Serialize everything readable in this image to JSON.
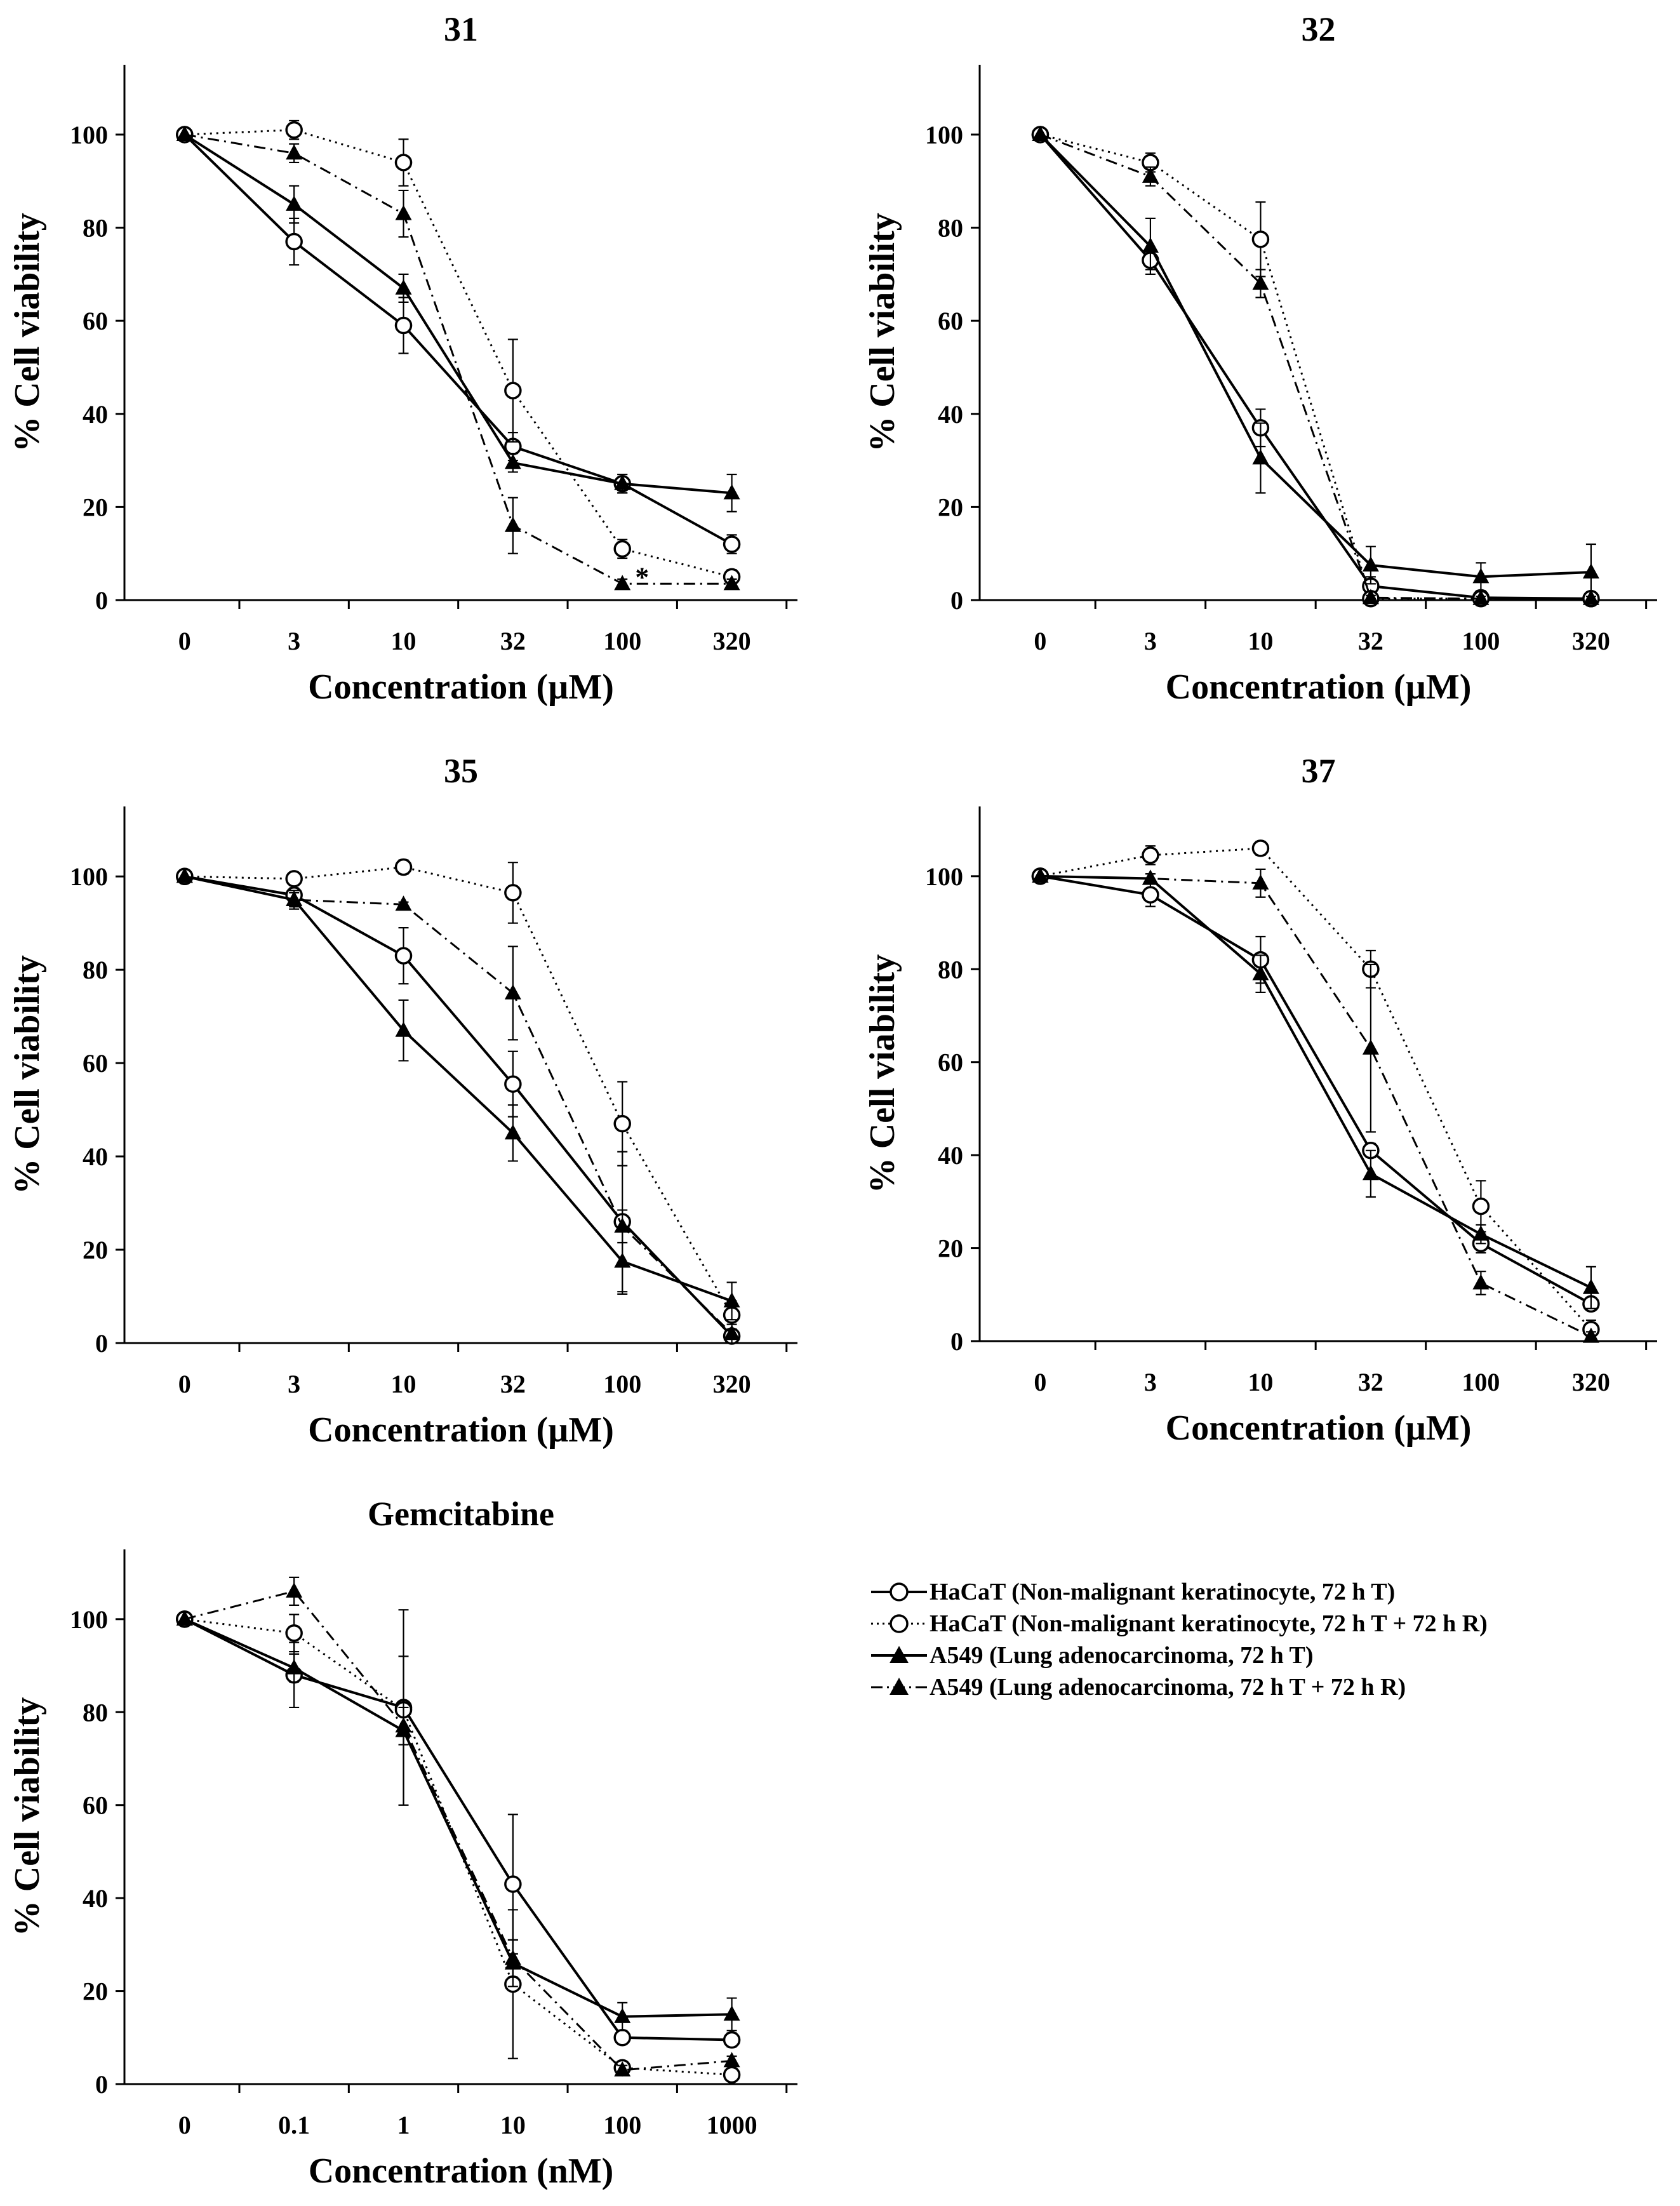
{
  "series_styles": [
    {
      "marker": "circle",
      "dash": "solid"
    },
    {
      "marker": "circle",
      "dash": "dotted"
    },
    {
      "marker": "triangle",
      "dash": "solid"
    },
    {
      "marker": "triangle",
      "dash": "dashdot"
    }
  ],
  "legend": [
    "HaCaT (Non-malignant keratinocyte, 72 h T)",
    "HaCaT (Non-malignant keratinocyte, 72 h T + 72 h R)",
    "A549 (Lung adenocarcinoma, 72 h T)",
    "A549 (Lung adenocarcinoma, 72 h T + 72 h R)"
  ],
  "chart_data": [
    {
      "type": "line",
      "title": "31",
      "xlabel": "Concentration (µM)",
      "ylabel": "% Cell viability",
      "categories": [
        "0",
        "3",
        "10",
        "32",
        "100",
        "320"
      ],
      "ylim": [
        0,
        115
      ],
      "yticks": [
        "0",
        "20",
        "40",
        "60",
        "80",
        "100"
      ],
      "annotations": [
        {
          "text": "*",
          "category": "100",
          "y": 3.5
        }
      ],
      "series": [
        {
          "values": [
            100,
            77,
            59,
            33,
            25,
            12
          ],
          "errors": [
            0,
            5,
            6,
            3,
            2,
            2
          ]
        },
        {
          "values": [
            100,
            101,
            94,
            45,
            11,
            5
          ],
          "errors": [
            0,
            2,
            5,
            11,
            2,
            1.5
          ]
        },
        {
          "values": [
            100,
            85,
            67,
            29.5,
            25,
            23
          ],
          "errors": [
            0,
            4,
            3,
            2,
            2,
            4
          ]
        },
        {
          "values": [
            100,
            96,
            83,
            16,
            3.5,
            3.5
          ],
          "errors": [
            0,
            2,
            5,
            6,
            1,
            1
          ]
        }
      ]
    },
    {
      "type": "line",
      "title": "32",
      "xlabel": "Concentration (µM)",
      "ylabel": "% Cell viability",
      "categories": [
        "0",
        "3",
        "10",
        "32",
        "100",
        "320"
      ],
      "ylim": [
        0,
        115
      ],
      "yticks": [
        "0",
        "20",
        "40",
        "60",
        "80",
        "100"
      ],
      "series": [
        {
          "values": [
            100,
            73,
            37,
            3,
            0.5,
            0.3
          ],
          "errors": [
            0,
            2,
            4,
            2,
            0.5,
            0.3
          ]
        },
        {
          "values": [
            100,
            94,
            77.5,
            0.3,
            0.3,
            0.3
          ],
          "errors": [
            0,
            2,
            8,
            0.5,
            0.5,
            0.5
          ]
        },
        {
          "values": [
            100,
            76,
            30.5,
            7.5,
            5,
            6
          ],
          "errors": [
            0,
            6,
            7.5,
            4,
            3,
            6
          ]
        },
        {
          "values": [
            100,
            91,
            68,
            0.5,
            0.3,
            0.3
          ],
          "errors": [
            0,
            2,
            3,
            0.5,
            0.5,
            0.5
          ]
        }
      ]
    },
    {
      "type": "line",
      "title": "35",
      "xlabel": "Concentration (µM)",
      "ylabel": "% Cell viability",
      "categories": [
        "0",
        "3",
        "10",
        "32",
        "100",
        "320"
      ],
      "ylim": [
        0,
        115
      ],
      "yticks": [
        "0",
        "20",
        "40",
        "60",
        "80",
        "100"
      ],
      "series": [
        {
          "values": [
            100,
            96,
            83,
            55.5,
            26,
            1.5
          ],
          "errors": [
            0,
            1.5,
            6,
            7,
            15,
            1
          ]
        },
        {
          "values": [
            100,
            99.5,
            102,
            96.5,
            47,
            6
          ],
          "errors": [
            0,
            1,
            1.5,
            6.5,
            9,
            3
          ]
        },
        {
          "values": [
            100,
            95,
            67,
            45,
            17.5,
            9
          ],
          "errors": [
            0,
            2,
            6.5,
            6,
            7,
            4
          ]
        },
        {
          "values": [
            100,
            95,
            94,
            75,
            25,
            2
          ],
          "errors": [
            0,
            1.5,
            0.5,
            10,
            3.5,
            2
          ]
        }
      ]
    },
    {
      "type": "line",
      "title": "37",
      "xlabel": "Concentration (µM)",
      "ylabel": "% Cell viability",
      "categories": [
        "0",
        "3",
        "10",
        "32",
        "100",
        "320"
      ],
      "ylim": [
        0,
        115
      ],
      "yticks": [
        "0",
        "20",
        "40",
        "60",
        "80",
        "100"
      ],
      "series": [
        {
          "values": [
            100,
            96,
            82,
            41,
            21,
            8
          ],
          "errors": [
            0,
            2.5,
            5,
            1.5,
            2,
            1
          ]
        },
        {
          "values": [
            100,
            104.5,
            106,
            80,
            29,
            2.5
          ],
          "errors": [
            0,
            2,
            1.5,
            4,
            5.5,
            2
          ]
        },
        {
          "values": [
            100,
            99.5,
            79,
            36,
            23,
            11.5
          ],
          "errors": [
            0,
            1,
            4,
            5,
            2,
            4.5
          ]
        },
        {
          "values": [
            100,
            99.5,
            98.5,
            63,
            12.5,
            1
          ],
          "errors": [
            0,
            1,
            3,
            18,
            2.5,
            1
          ]
        }
      ]
    },
    {
      "type": "line",
      "title": "Gemcitabine",
      "xlabel": "Concentration (nM)",
      "ylabel": "% Cell viability",
      "categories": [
        "0",
        "0.1",
        "1",
        "10",
        "100",
        "1000"
      ],
      "ylim": [
        0,
        115
      ],
      "yticks": [
        "0",
        "20",
        "40",
        "60",
        "80",
        "100"
      ],
      "series": [
        {
          "values": [
            100,
            88,
            81,
            43,
            10,
            9.5
          ],
          "errors": [
            0,
            7,
            21,
            15,
            1,
            1.5
          ]
        },
        {
          "values": [
            100,
            97,
            80.5,
            21.5,
            3.5,
            2
          ],
          "errors": [
            0,
            4,
            0.5,
            16,
            0.5,
            0.5
          ]
        },
        {
          "values": [
            100,
            89.5,
            76,
            26,
            14.5,
            15
          ],
          "errors": [
            0,
            3,
            16,
            5,
            3,
            3.5
          ]
        },
        {
          "values": [
            100,
            106,
            77,
            27,
            3,
            5
          ],
          "errors": [
            0,
            3,
            4,
            4,
            1,
            1
          ]
        }
      ]
    }
  ]
}
